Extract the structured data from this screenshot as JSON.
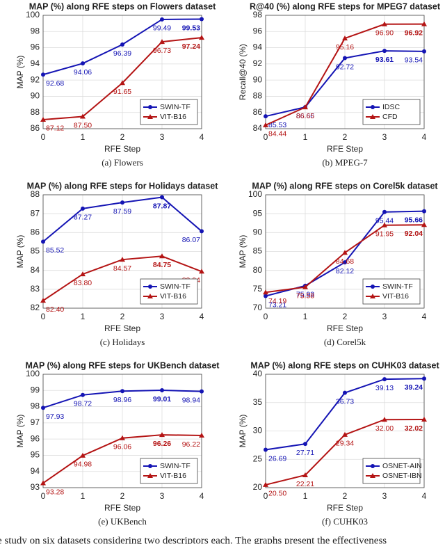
{
  "chart_data": [
    {
      "type": "line",
      "title": "MAP (%) along RFE steps on Flowers dataset",
      "caption": "(a) Flowers",
      "x_label": "RFE Step",
      "y_label": "MAP (%)",
      "x": [
        0,
        1,
        2,
        3,
        4
      ],
      "xlim": [
        0,
        4
      ],
      "xticks": [
        0,
        1,
        2,
        3,
        4
      ],
      "ylim": [
        86,
        100
      ],
      "yticks": [
        86,
        88,
        90,
        92,
        94,
        96,
        98,
        100
      ],
      "grid": true,
      "legend": "lower right",
      "series": [
        {
          "name": "SWIN-TF",
          "color": "#1414b4",
          "marker": "circle",
          "values": [
            92.68,
            94.06,
            96.39,
            99.49,
            99.53
          ],
          "value_labels": [
            "92.68",
            "94.06",
            "96.39",
            "99.49",
            "99.53"
          ]
        },
        {
          "name": "VIT-B16",
          "color": "#b41414",
          "marker": "triangle",
          "values": [
            87.12,
            87.5,
            91.65,
            96.73,
            97.24
          ],
          "value_labels": [
            "87.12",
            "87.50",
            "91.65",
            "96.73",
            "97.24"
          ]
        }
      ]
    },
    {
      "type": "line",
      "title": "R@40 (%) along RFE steps for MPEG7 dataset",
      "caption": "(b) MPEG-7",
      "x_label": "RFE Step",
      "y_label": "Recall@40 (%)",
      "x": [
        0,
        1,
        2,
        3,
        4
      ],
      "xlim": [
        0,
        4
      ],
      "xticks": [
        0,
        1,
        2,
        3,
        4
      ],
      "ylim": [
        84,
        98
      ],
      "yticks": [
        84,
        86,
        88,
        90,
        92,
        94,
        96,
        98
      ],
      "grid": true,
      "legend": "lower right",
      "series": [
        {
          "name": "IDSC",
          "color": "#1414b4",
          "marker": "circle",
          "values": [
            85.53,
            86.66,
            92.72,
            93.61,
            93.54
          ],
          "value_labels": [
            "85.53",
            "86.66",
            "92.72",
            "93.61",
            "93.54"
          ]
        },
        {
          "name": "CFD",
          "color": "#b41414",
          "marker": "triangle",
          "values": [
            84.44,
            86.65,
            95.16,
            96.9,
            96.92
          ],
          "value_labels": [
            "84.44",
            "86.65",
            "95.16",
            "96.90",
            "96.92"
          ]
        }
      ]
    },
    {
      "type": "line",
      "title": "MAP (%) along RFE steps for Holidays dataset",
      "caption": "(c) Holidays",
      "x_label": "RFE Step",
      "y_label": "MAP (%)",
      "x": [
        0,
        1,
        2,
        3,
        4
      ],
      "xlim": [
        0,
        4
      ],
      "xticks": [
        0,
        1,
        2,
        3,
        4
      ],
      "ylim": [
        82,
        88
      ],
      "yticks": [
        82,
        83,
        84,
        85,
        86,
        87,
        88
      ],
      "grid": true,
      "legend": "lower right",
      "series": [
        {
          "name": "SWIN-TF",
          "color": "#1414b4",
          "marker": "circle",
          "values": [
            85.52,
            87.27,
            87.59,
            87.87,
            86.07
          ],
          "value_labels": [
            "85.52",
            "87.27",
            "87.59",
            "87.87",
            "86.07"
          ]
        },
        {
          "name": "VIT-B16",
          "color": "#b41414",
          "marker": "triangle",
          "values": [
            82.4,
            83.8,
            84.57,
            84.75,
            83.94
          ],
          "value_labels": [
            "82.40",
            "83.80",
            "84.57",
            "84.75",
            "83.94"
          ]
        }
      ]
    },
    {
      "type": "line",
      "title": "MAP (%) along RFE steps on Corel5k dataset",
      "caption": "(d) Corel5k",
      "x_label": "RFE Step",
      "y_label": "MAP (%)",
      "x": [
        0,
        1,
        2,
        3,
        4
      ],
      "xlim": [
        0,
        4
      ],
      "xticks": [
        0,
        1,
        2,
        3,
        4
      ],
      "ylim": [
        70,
        100
      ],
      "yticks": [
        70,
        75,
        80,
        85,
        90,
        95,
        100
      ],
      "grid": true,
      "legend": "lower right",
      "series": [
        {
          "name": "SWIN-TF",
          "color": "#1414b4",
          "marker": "circle",
          "values": [
            73.21,
            75.93,
            82.12,
            95.44,
            95.66
          ],
          "value_labels": [
            "73.21",
            "75.93",
            "82.12",
            "95.44",
            "95.66"
          ]
        },
        {
          "name": "VIT-B16",
          "color": "#b41414",
          "marker": "triangle",
          "values": [
            74.19,
            75.58,
            84.68,
            91.95,
            92.04
          ],
          "value_labels": [
            "74.19",
            "75.58",
            "84.68",
            "91.95",
            "92.04"
          ]
        }
      ]
    },
    {
      "type": "line",
      "title": "MAP (%) along RFE steps for UKBench dataset",
      "caption": "(e) UKBench",
      "x_label": "RFE Step",
      "y_label": "MAP (%)",
      "x": [
        0,
        1,
        2,
        3,
        4
      ],
      "xlim": [
        0,
        4
      ],
      "xticks": [
        0,
        1,
        2,
        3,
        4
      ],
      "ylim": [
        93,
        100
      ],
      "yticks": [
        93,
        94,
        95,
        96,
        97,
        98,
        99,
        100
      ],
      "grid": true,
      "legend": "lower right",
      "series": [
        {
          "name": "SWIN-TF",
          "color": "#1414b4",
          "marker": "circle",
          "values": [
            97.93,
            98.72,
            98.96,
            99.01,
            98.94
          ],
          "value_labels": [
            "97.93",
            "98.72",
            "98.96",
            "99.01",
            "98.94"
          ]
        },
        {
          "name": "VIT-B16",
          "color": "#b41414",
          "marker": "triangle",
          "values": [
            93.28,
            94.98,
            96.06,
            96.26,
            96.22
          ],
          "value_labels": [
            "93.28",
            "94.98",
            "96.06",
            "96.26",
            "96.22"
          ]
        }
      ]
    },
    {
      "type": "line",
      "title": "MAP (%) along RFE steps on CUHK03 dataset",
      "caption": "(f) CUHK03",
      "x_label": "RFE Step",
      "y_label": "MAP (%)",
      "x": [
        0,
        1,
        2,
        3,
        4
      ],
      "xlim": [
        0,
        4
      ],
      "xticks": [
        0,
        1,
        2,
        3,
        4
      ],
      "ylim": [
        20,
        40
      ],
      "yticks": [
        20,
        25,
        30,
        35,
        40
      ],
      "grid": true,
      "legend": "lower right",
      "series": [
        {
          "name": "OSNET-AIN",
          "color": "#1414b4",
          "marker": "circle",
          "values": [
            26.69,
            27.71,
            36.73,
            39.13,
            39.24
          ],
          "value_labels": [
            "26.69",
            "27.71",
            "36.73",
            "39.13",
            "39.24"
          ]
        },
        {
          "name": "OSNET-IBN",
          "color": "#b41414",
          "marker": "triangle",
          "values": [
            20.5,
            22.21,
            29.34,
            32.0,
            32.02
          ],
          "value_labels": [
            "20.50",
            "22.21",
            "29.34",
            "32.00",
            "32.02"
          ]
        }
      ]
    }
  ],
  "caption_fragment": "e study on six datasets considering two descriptors each. The graphs present the effectiveness"
}
